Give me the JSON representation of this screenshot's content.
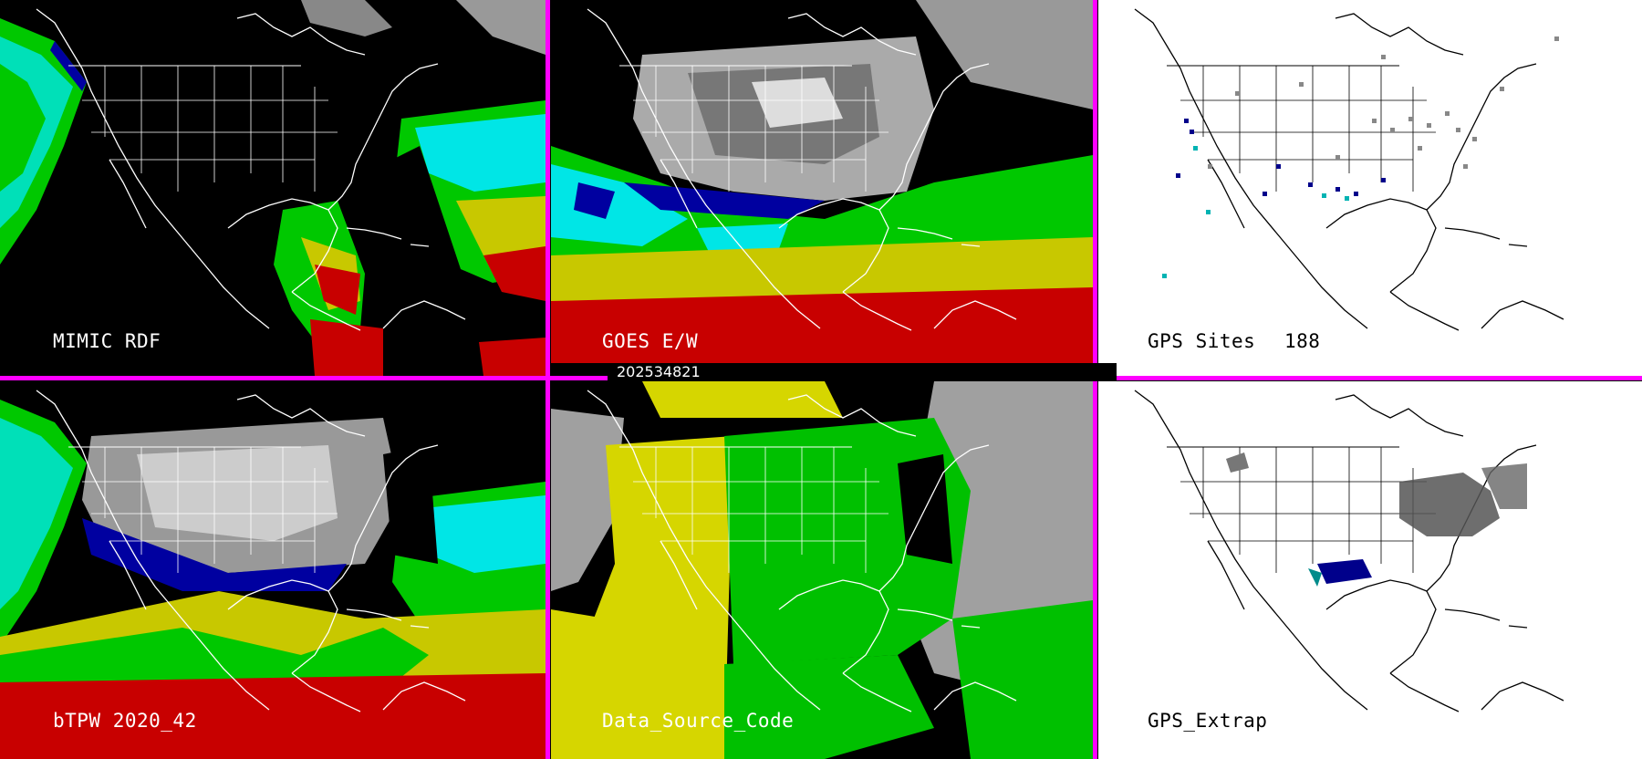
{
  "panels": {
    "mimic": {
      "label": "MIMIC RDF"
    },
    "goes": {
      "label": "GOES E/W"
    },
    "gps_sites": {
      "label": "GPS Sites",
      "count": "188"
    },
    "btpw": {
      "label": "bTPW 2020_42"
    },
    "source": {
      "label": "Data_Source_Code"
    },
    "gps_extrap": {
      "label": "GPS_Extrap"
    }
  },
  "timestamp": "202534821",
  "colors": {
    "divider": "#ff00ff",
    "tpw_red": "#c80000",
    "tpw_yellow": "#c8c800",
    "tpw_green": "#00c800",
    "tpw_cyan": "#00e6e6",
    "tpw_blue": "#0000a0",
    "gray": "#a0a0a0",
    "source_yellow": "#d6d600",
    "source_green": "#00c000"
  }
}
